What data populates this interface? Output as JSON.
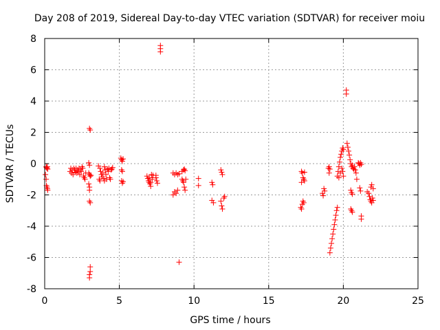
{
  "chart_data": {
    "type": "scatter",
    "title": "Day 208 of 2019, Sidereal Day-to-day VTEC variation (SDTVAR) for receiver moiu",
    "xlabel": "GPS time / hours",
    "ylabel": "SDTVAR / TECUs",
    "xlim": [
      0,
      25
    ],
    "ylim": [
      -8,
      8
    ],
    "xticks": [
      0,
      5,
      10,
      15,
      20,
      25
    ],
    "yticks": [
      -8,
      -6,
      -4,
      -2,
      0,
      2,
      4,
      6,
      8
    ],
    "xtick_labels": [
      "0",
      "5",
      "10",
      "15",
      "20",
      "25"
    ],
    "ytick_labels": [
      "-8",
      "-6",
      "-4",
      "-2",
      "0",
      "2",
      "4",
      "6",
      "8"
    ],
    "grid": true,
    "marker": "+",
    "marker_color": "#ff0000",
    "series": [
      {
        "name": "SDTVAR",
        "points": [
          [
            0.1,
            -0.2
          ],
          [
            0.12,
            -0.25
          ],
          [
            0.15,
            -0.3
          ],
          [
            0.18,
            -0.2
          ],
          [
            0.2,
            -0.35
          ],
          [
            0.05,
            -0.7
          ],
          [
            0.1,
            -1.0
          ],
          [
            0.12,
            -1.4
          ],
          [
            0.15,
            -1.5
          ],
          [
            0.18,
            -1.6
          ],
          [
            0.2,
            -1.7
          ],
          [
            1.7,
            -0.5
          ],
          [
            1.75,
            -0.3
          ],
          [
            1.8,
            -0.6
          ],
          [
            1.85,
            -0.4
          ],
          [
            1.9,
            -0.7
          ],
          [
            1.95,
            -0.3
          ],
          [
            2.0,
            -0.4
          ],
          [
            2.05,
            -0.55
          ],
          [
            2.1,
            -0.3
          ],
          [
            2.15,
            -0.6
          ],
          [
            2.2,
            -0.4
          ],
          [
            2.25,
            -0.5
          ],
          [
            2.3,
            -0.3
          ],
          [
            2.35,
            -0.7
          ],
          [
            2.4,
            -0.4
          ],
          [
            2.45,
            -0.5
          ],
          [
            2.5,
            -0.2
          ],
          [
            2.55,
            -0.3
          ],
          [
            2.6,
            -0.8
          ],
          [
            2.65,
            -0.9
          ],
          [
            2.7,
            -1.0
          ],
          [
            2.75,
            -0.6
          ],
          [
            2.95,
            0.05
          ],
          [
            3.0,
            -0.1
          ],
          [
            2.95,
            -0.6
          ],
          [
            3.0,
            -0.7
          ],
          [
            3.05,
            -0.8
          ],
          [
            3.1,
            -0.75
          ],
          [
            2.95,
            -1.3
          ],
          [
            3.0,
            -1.5
          ],
          [
            3.0,
            -1.7
          ],
          [
            3.0,
            -2.4
          ],
          [
            3.05,
            -2.5
          ],
          [
            3.0,
            2.25
          ],
          [
            3.05,
            2.15
          ],
          [
            3.05,
            -6.6
          ],
          [
            3.05,
            -6.9
          ],
          [
            3.0,
            -7.1
          ],
          [
            3.0,
            -7.3
          ],
          [
            3.6,
            -0.15
          ],
          [
            3.7,
            -0.3
          ],
          [
            3.75,
            -0.5
          ],
          [
            3.8,
            -0.7
          ],
          [
            3.85,
            -0.85
          ],
          [
            3.9,
            -0.6
          ],
          [
            3.95,
            -0.95
          ],
          [
            4.0,
            -0.2
          ],
          [
            4.05,
            -0.4
          ],
          [
            4.1,
            -0.7
          ],
          [
            4.15,
            -1.0
          ],
          [
            4.2,
            -0.35
          ],
          [
            4.25,
            -0.5
          ],
          [
            4.3,
            -0.3
          ],
          [
            4.35,
            -0.9
          ],
          [
            4.4,
            -1.0
          ],
          [
            4.45,
            -0.4
          ],
          [
            4.5,
            -0.35
          ],
          [
            4.55,
            -0.25
          ],
          [
            3.65,
            -1.0
          ],
          [
            3.7,
            -1.1
          ],
          [
            4.0,
            -1.1
          ],
          [
            5.1,
            0.35
          ],
          [
            5.15,
            0.25
          ],
          [
            5.2,
            0.15
          ],
          [
            5.25,
            0.3
          ],
          [
            5.15,
            -0.4
          ],
          [
            5.2,
            -0.5
          ],
          [
            5.15,
            -1.1
          ],
          [
            5.2,
            -1.25
          ],
          [
            5.25,
            -1.15
          ],
          [
            6.85,
            -0.8
          ],
          [
            6.9,
            -0.95
          ],
          [
            6.95,
            -1.1
          ],
          [
            7.0,
            -1.2
          ],
          [
            7.05,
            -1.3
          ],
          [
            7.1,
            -1.45
          ],
          [
            7.15,
            -0.7
          ],
          [
            7.2,
            -1.0
          ],
          [
            7.25,
            -0.75
          ],
          [
            7.0,
            -0.9
          ],
          [
            7.1,
            -1.2
          ],
          [
            7.45,
            -0.9
          ],
          [
            7.5,
            -1.1
          ],
          [
            7.55,
            -1.25
          ],
          [
            7.45,
            -0.75
          ],
          [
            7.75,
            7.55
          ],
          [
            7.75,
            7.35
          ],
          [
            7.75,
            7.15
          ],
          [
            8.6,
            -0.6
          ],
          [
            8.7,
            -0.7
          ],
          [
            8.8,
            -0.6
          ],
          [
            8.9,
            -0.7
          ],
          [
            9.0,
            -0.65
          ],
          [
            8.7,
            -1.8
          ],
          [
            8.8,
            -1.9
          ],
          [
            8.9,
            -1.7
          ],
          [
            8.6,
            -2.0
          ],
          [
            9.0,
            -6.3
          ],
          [
            9.2,
            -0.5
          ],
          [
            9.3,
            -0.4
          ],
          [
            9.35,
            -0.35
          ],
          [
            9.4,
            -0.45
          ],
          [
            9.2,
            -1.0
          ],
          [
            9.25,
            -1.1
          ],
          [
            9.3,
            -1.2
          ],
          [
            9.35,
            -1.5
          ],
          [
            9.4,
            -1.7
          ],
          [
            9.45,
            -1.0
          ],
          [
            10.3,
            -0.95
          ],
          [
            10.3,
            -1.4
          ],
          [
            11.2,
            -1.2
          ],
          [
            11.25,
            -1.35
          ],
          [
            11.2,
            -2.35
          ],
          [
            11.3,
            -2.5
          ],
          [
            11.8,
            -0.4
          ],
          [
            11.85,
            -0.55
          ],
          [
            11.9,
            -0.7
          ],
          [
            11.8,
            -2.4
          ],
          [
            11.85,
            -2.7
          ],
          [
            11.9,
            -2.9
          ],
          [
            12.0,
            -2.2
          ],
          [
            12.05,
            -2.1
          ],
          [
            17.2,
            -0.5
          ],
          [
            17.25,
            -0.6
          ],
          [
            17.3,
            -0.9
          ],
          [
            17.35,
            -1.0
          ],
          [
            17.4,
            -1.1
          ],
          [
            17.2,
            -1.2
          ],
          [
            17.25,
            -2.6
          ],
          [
            17.3,
            -2.4
          ],
          [
            17.35,
            -2.5
          ],
          [
            17.15,
            -2.8
          ],
          [
            17.2,
            -2.9
          ],
          [
            17.4,
            -0.55
          ],
          [
            18.6,
            -1.9
          ],
          [
            18.65,
            -2.05
          ],
          [
            18.7,
            -1.6
          ],
          [
            18.75,
            -1.75
          ],
          [
            19.0,
            -0.3
          ],
          [
            19.05,
            -0.2
          ],
          [
            19.1,
            -0.35
          ],
          [
            19.05,
            -0.6
          ],
          [
            19.1,
            -5.7
          ],
          [
            19.15,
            -5.4
          ],
          [
            19.2,
            -5.1
          ],
          [
            19.25,
            -4.8
          ],
          [
            19.3,
            -4.5
          ],
          [
            19.35,
            -4.2
          ],
          [
            19.4,
            -3.9
          ],
          [
            19.45,
            -3.6
          ],
          [
            19.5,
            -3.3
          ],
          [
            19.55,
            -3.0
          ],
          [
            19.6,
            -2.8
          ],
          [
            19.6,
            -0.8
          ],
          [
            19.65,
            -0.5
          ],
          [
            19.7,
            -0.2
          ],
          [
            19.75,
            0.1
          ],
          [
            19.8,
            0.4
          ],
          [
            19.85,
            0.6
          ],
          [
            19.9,
            0.8
          ],
          [
            19.95,
            1.0
          ],
          [
            20.0,
            0.9
          ],
          [
            19.9,
            -0.3
          ],
          [
            19.95,
            -0.5
          ],
          [
            20.0,
            -0.8
          ],
          [
            19.8,
            -0.6
          ],
          [
            19.7,
            -0.9
          ],
          [
            20.25,
            1.3
          ],
          [
            20.3,
            1.05
          ],
          [
            20.35,
            0.8
          ],
          [
            20.4,
            0.55
          ],
          [
            20.45,
            0.25
          ],
          [
            20.5,
            0.0
          ],
          [
            20.55,
            -0.2
          ],
          [
            20.6,
            -0.1
          ],
          [
            20.65,
            -0.3
          ],
          [
            20.7,
            -0.35
          ],
          [
            20.75,
            -0.2
          ],
          [
            20.8,
            -0.4
          ],
          [
            20.85,
            -0.6
          ],
          [
            20.9,
            -1.0
          ],
          [
            20.5,
            -1.7
          ],
          [
            20.55,
            -1.85
          ],
          [
            20.6,
            -1.95
          ],
          [
            20.5,
            -2.9
          ],
          [
            20.55,
            -3.0
          ],
          [
            20.6,
            -3.1
          ],
          [
            20.2,
            4.7
          ],
          [
            20.2,
            4.45
          ],
          [
            21.0,
            0.05
          ],
          [
            21.05,
            0.0
          ],
          [
            21.1,
            -0.1
          ],
          [
            21.15,
            0.05
          ],
          [
            21.2,
            -0.05
          ],
          [
            21.1,
            -1.55
          ],
          [
            21.15,
            -1.75
          ],
          [
            21.2,
            -3.35
          ],
          [
            21.2,
            -3.55
          ],
          [
            21.6,
            -1.8
          ],
          [
            21.7,
            -1.9
          ],
          [
            21.75,
            -2.1
          ],
          [
            21.8,
            -2.3
          ],
          [
            21.85,
            -2.4
          ],
          [
            21.9,
            -2.5
          ],
          [
            21.85,
            -1.5
          ],
          [
            21.9,
            -1.35
          ],
          [
            21.95,
            -2.2
          ],
          [
            22.0,
            -2.35
          ],
          [
            22.0,
            -1.6
          ]
        ]
      }
    ]
  }
}
